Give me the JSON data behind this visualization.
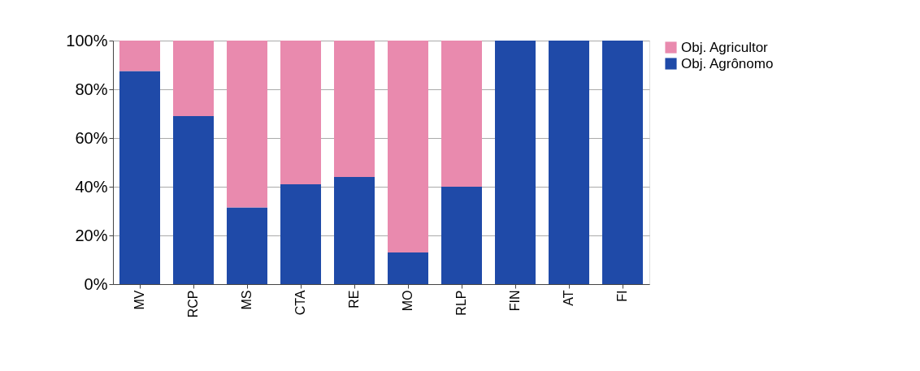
{
  "chart_data": {
    "type": "bar",
    "stacked": true,
    "categories": [
      "MV",
      "RCP",
      "MS",
      "CTA",
      "RE",
      "MO",
      "RLP",
      "FIN",
      "AT",
      "FI"
    ],
    "series": [
      {
        "name": "Obj. Agrônomo",
        "color": "#1f4aa8",
        "values": [
          87.5,
          69,
          31.5,
          41,
          44,
          13,
          40,
          100,
          100,
          100
        ]
      },
      {
        "name": "Obj. Agricultor",
        "color": "#e98aae",
        "values": [
          12.5,
          31,
          68.5,
          59,
          56,
          87,
          60,
          0,
          0,
          0
        ]
      }
    ],
    "ylim": [
      0,
      100
    ],
    "yticks": [
      {
        "value": 0,
        "label": "0%"
      },
      {
        "value": 20,
        "label": "20%"
      },
      {
        "value": 40,
        "label": "40%"
      },
      {
        "value": 60,
        "label": "60%"
      },
      {
        "value": 80,
        "label": "80%"
      },
      {
        "value": 100,
        "label": "100%"
      }
    ],
    "grid": "y",
    "legend": "right"
  }
}
